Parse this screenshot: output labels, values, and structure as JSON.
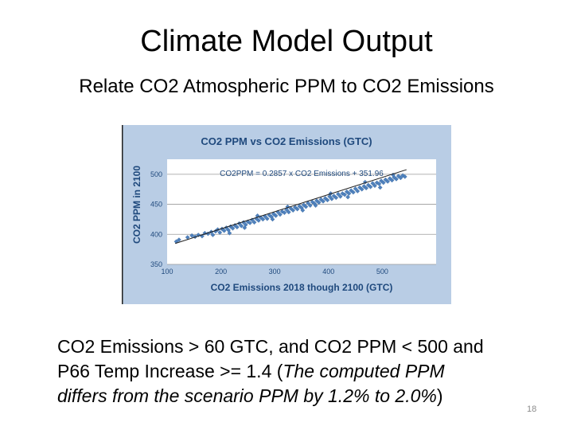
{
  "slide": {
    "title": "Climate Model Output",
    "subtitle": "Relate CO2 Atmospheric PPM to CO2 Emissions",
    "bullet": {
      "line1": "CO2 Emissions > 60 GTC, and CO2 PPM < 500 and",
      "line2_plain": "P66 Temp Increase >= 1.4 (",
      "line2_italic": "The computed PPM",
      "line3_italic": "differs from the scenario PPM by 1.2% to 2.0%",
      "line3_plain": ")"
    },
    "page_number": "18"
  },
  "chart_data": {
    "type": "scatter",
    "title": "CO2 PPM vs CO2 Emissions (GTC)",
    "xlabel": "CO2 Emissions 2018 though 2100 (GTC)",
    "ylabel": "CO2 PPM in 2100",
    "xlim": [
      100,
      600
    ],
    "ylim": [
      350,
      525
    ],
    "x_ticks": [
      100,
      200,
      300,
      400,
      500
    ],
    "y_ticks": [
      350,
      400,
      450,
      500
    ],
    "grid": "horizontal",
    "trendline": {
      "equation": "CO2PPM = 0.2857 x CO2 Emissions + 351.96",
      "slope": 0.2857,
      "intercept": 351.96,
      "x_range": [
        115,
        545
      ]
    },
    "colors": {
      "background": "#b9cde5",
      "plot_area": "#ffffff",
      "points": "#4f81bd",
      "trendline": "#1f1f1f",
      "text": "#1f497d"
    },
    "points": [
      [
        117,
        388
      ],
      [
        122,
        391
      ],
      [
        138,
        395
      ],
      [
        146,
        398
      ],
      [
        152,
        396
      ],
      [
        158,
        399
      ],
      [
        165,
        397
      ],
      [
        170,
        402
      ],
      [
        176,
        401
      ],
      [
        182,
        404
      ],
      [
        185,
        399
      ],
      [
        190,
        405
      ],
      [
        194,
        408
      ],
      [
        198,
        403
      ],
      [
        202,
        409
      ],
      [
        206,
        406
      ],
      [
        210,
        411
      ],
      [
        214,
        407
      ],
      [
        218,
        413
      ],
      [
        222,
        410
      ],
      [
        226,
        415
      ],
      [
        230,
        412
      ],
      [
        234,
        418
      ],
      [
        238,
        414
      ],
      [
        242,
        420
      ],
      [
        246,
        416
      ],
      [
        250,
        421
      ],
      [
        254,
        419
      ],
      [
        258,
        424
      ],
      [
        262,
        420
      ],
      [
        266,
        426
      ],
      [
        270,
        423
      ],
      [
        274,
        428
      ],
      [
        278,
        425
      ],
      [
        282,
        430
      ],
      [
        286,
        426
      ],
      [
        290,
        432
      ],
      [
        294,
        429
      ],
      [
        298,
        434
      ],
      [
        302,
        431
      ],
      [
        306,
        437
      ],
      [
        310,
        433
      ],
      [
        314,
        438
      ],
      [
        318,
        436
      ],
      [
        322,
        441
      ],
      [
        326,
        437
      ],
      [
        330,
        443
      ],
      [
        334,
        440
      ],
      [
        338,
        445
      ],
      [
        342,
        442
      ],
      [
        346,
        447
      ],
      [
        350,
        444
      ],
      [
        354,
        449
      ],
      [
        358,
        446
      ],
      [
        362,
        452
      ],
      [
        366,
        448
      ],
      [
        370,
        454
      ],
      [
        374,
        451
      ],
      [
        378,
        456
      ],
      [
        382,
        453
      ],
      [
        386,
        458
      ],
      [
        390,
        455
      ],
      [
        394,
        460
      ],
      [
        398,
        457
      ],
      [
        402,
        463
      ],
      [
        406,
        459
      ],
      [
        410,
        464
      ],
      [
        414,
        461
      ],
      [
        418,
        467
      ],
      [
        422,
        463
      ],
      [
        426,
        468
      ],
      [
        430,
        466
      ],
      [
        434,
        471
      ],
      [
        438,
        468
      ],
      [
        442,
        473
      ],
      [
        446,
        470
      ],
      [
        450,
        476
      ],
      [
        454,
        472
      ],
      [
        458,
        478
      ],
      [
        462,
        475
      ],
      [
        466,
        480
      ],
      [
        470,
        477
      ],
      [
        474,
        482
      ],
      [
        478,
        479
      ],
      [
        482,
        485
      ],
      [
        486,
        481
      ],
      [
        490,
        486
      ],
      [
        494,
        484
      ],
      [
        498,
        489
      ],
      [
        502,
        486
      ],
      [
        506,
        491
      ],
      [
        510,
        488
      ],
      [
        514,
        493
      ],
      [
        518,
        490
      ],
      [
        522,
        495
      ],
      [
        526,
        492
      ],
      [
        530,
        497
      ],
      [
        534,
        494
      ],
      [
        538,
        498
      ],
      [
        542,
        496
      ],
      [
        216,
        402
      ],
      [
        244,
        411
      ],
      [
        268,
        431
      ],
      [
        296,
        425
      ],
      [
        324,
        446
      ],
      [
        352,
        440
      ],
      [
        376,
        448
      ],
      [
        404,
        468
      ],
      [
        436,
        462
      ],
      [
        468,
        487
      ],
      [
        496,
        478
      ],
      [
        520,
        499
      ]
    ]
  }
}
